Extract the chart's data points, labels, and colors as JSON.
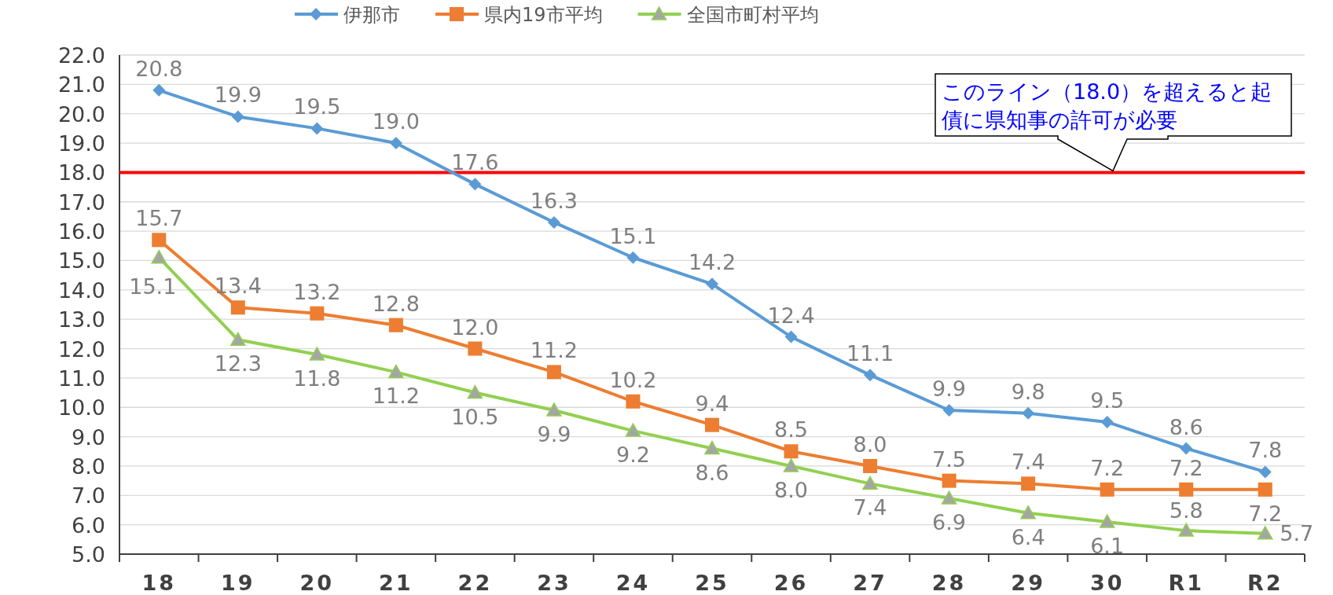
{
  "chart_data": {
    "type": "line",
    "categories": [
      "18",
      "19",
      "20",
      "21",
      "22",
      "23",
      "24",
      "25",
      "26",
      "27",
      "28",
      "29",
      "30",
      "R1",
      "R2"
    ],
    "series": [
      {
        "name": "伊那市",
        "color": "#5b9bd5",
        "marker": "diamond",
        "values": [
          20.8,
          19.9,
          19.5,
          19.0,
          17.6,
          16.3,
          15.1,
          14.2,
          12.4,
          11.1,
          9.9,
          9.8,
          9.5,
          8.6,
          7.8
        ],
        "value_labels": [
          "20.8",
          "19.9",
          "19.5",
          "19.0",
          "17.6",
          "16.3",
          "15.1",
          "14.2",
          "12.4",
          "11.1",
          "9.9",
          "9.8",
          "9.5",
          "8.6",
          "7.8"
        ]
      },
      {
        "name": "県内19市平均",
        "color": "#ed7d31",
        "marker": "square",
        "values": [
          15.7,
          13.4,
          13.2,
          12.8,
          12.0,
          11.2,
          10.2,
          9.4,
          8.5,
          8.0,
          7.5,
          7.4,
          7.2,
          7.2,
          7.2
        ],
        "value_labels": [
          "15.7",
          "13.4",
          "13.2",
          "12.8",
          "12.0",
          "11.2",
          "10.2",
          "9.4",
          "8.5",
          "8.0",
          "7.5",
          "7.4",
          "7.2",
          "7.2",
          "7.2"
        ]
      },
      {
        "name": "全国市町村平均",
        "color": "#92d050",
        "marker": "triangle",
        "values": [
          15.1,
          12.3,
          11.8,
          11.2,
          10.5,
          9.9,
          9.2,
          8.6,
          8.0,
          7.4,
          6.9,
          6.4,
          6.1,
          5.8,
          5.7
        ],
        "value_labels": [
          "15.1",
          "12.3",
          "11.8",
          "11.2",
          "10.5",
          "9.9",
          "9.2",
          "8.6",
          "8.0",
          "7.4",
          "6.9",
          "6.4",
          "6.1",
          "5.8",
          "5.7"
        ]
      }
    ],
    "ylim": [
      5,
      22
    ],
    "yticks": [
      {
        "value": 5,
        "label": "5.0"
      },
      {
        "value": 6,
        "label": "6.0"
      },
      {
        "value": 7,
        "label": "7.0"
      },
      {
        "value": 8,
        "label": "8.0"
      },
      {
        "value": 9,
        "label": "9.0"
      },
      {
        "value": 10,
        "label": "10.0"
      },
      {
        "value": 11,
        "label": "11.0"
      },
      {
        "value": 12,
        "label": "12.0"
      },
      {
        "value": 13,
        "label": "13.0"
      },
      {
        "value": 14,
        "label": "14.0"
      },
      {
        "value": 15,
        "label": "15.0"
      },
      {
        "value": 16,
        "label": "16.0"
      },
      {
        "value": 17,
        "label": "17.0"
      },
      {
        "value": 18,
        "label": "18.0"
      },
      {
        "value": 19,
        "label": "19.0"
      },
      {
        "value": 20,
        "label": "20.0"
      },
      {
        "value": 21,
        "label": "21.0"
      },
      {
        "value": 22,
        "label": "22.0"
      }
    ],
    "grid": "y",
    "legend": "top",
    "ref_lines": [
      {
        "axis": "y",
        "value": 18,
        "color": "#ff0000",
        "label": "このライン（18.0）を超えると起債に県知事の許可が必要"
      }
    ]
  }
}
